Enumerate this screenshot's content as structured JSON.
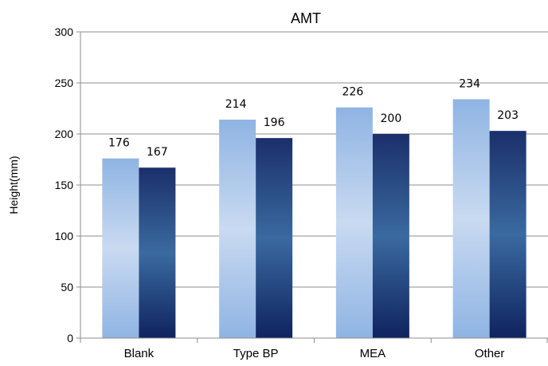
{
  "chart_data": {
    "type": "bar",
    "title": "AMT",
    "xlabel": "",
    "ylabel": "Height(mm)",
    "ylim": [
      0,
      300
    ],
    "yticks": [
      0,
      50,
      100,
      150,
      200,
      250,
      300
    ],
    "grid": true,
    "legend": "none",
    "categories": [
      "Blank",
      "Type BP",
      "MEA",
      "Other"
    ],
    "series": [
      {
        "values": [
          176,
          214,
          226,
          234
        ],
        "colors": [
          "#8fb4e3",
          "#c9daf1"
        ]
      },
      {
        "values": [
          167,
          196,
          200,
          203
        ],
        "colors": [
          "#1b2f6b",
          "#3a6aa0"
        ]
      }
    ]
  }
}
